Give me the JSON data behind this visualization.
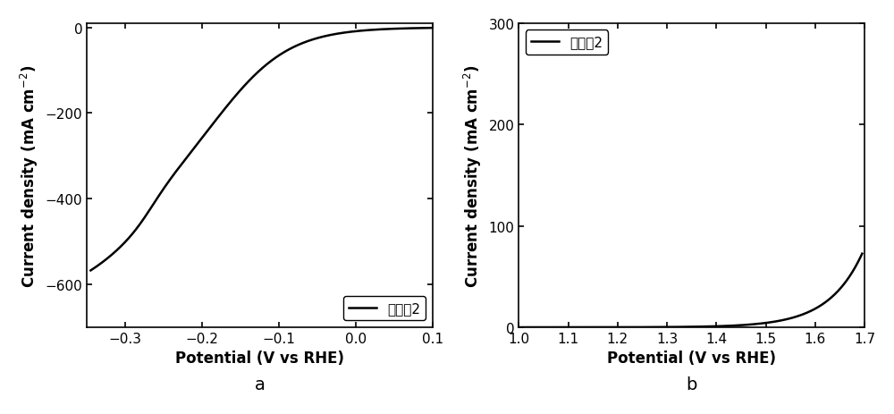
{
  "plot_a": {
    "xlabel": "Potential (V vs RHE)",
    "ylabel": "Current density (mA cm$^{-2}$)",
    "legend_label": "实施例2",
    "xlim": [
      -0.35,
      0.1
    ],
    "ylim": [
      -700,
      10
    ],
    "xticks": [
      -0.3,
      -0.2,
      -0.1,
      0.0,
      0.1
    ],
    "yticks": [
      0,
      -200,
      -400,
      -600
    ],
    "label_a": "a"
  },
  "plot_b": {
    "xlabel": "Potential (V vs RHE)",
    "ylabel": "Current density (mA cm$^{-2}$)",
    "legend_label": "实施例2",
    "xlim": [
      1.0,
      1.7
    ],
    "ylim": [
      0,
      300
    ],
    "xticks": [
      1.0,
      1.1,
      1.2,
      1.3,
      1.4,
      1.5,
      1.6,
      1.7
    ],
    "yticks": [
      0,
      100,
      200,
      300
    ],
    "label_b": "b"
  },
  "line_color": "#000000",
  "line_width": 1.8,
  "background_color": "#ffffff",
  "tick_fontsize": 11,
  "label_fontsize": 12,
  "legend_fontsize": 11
}
